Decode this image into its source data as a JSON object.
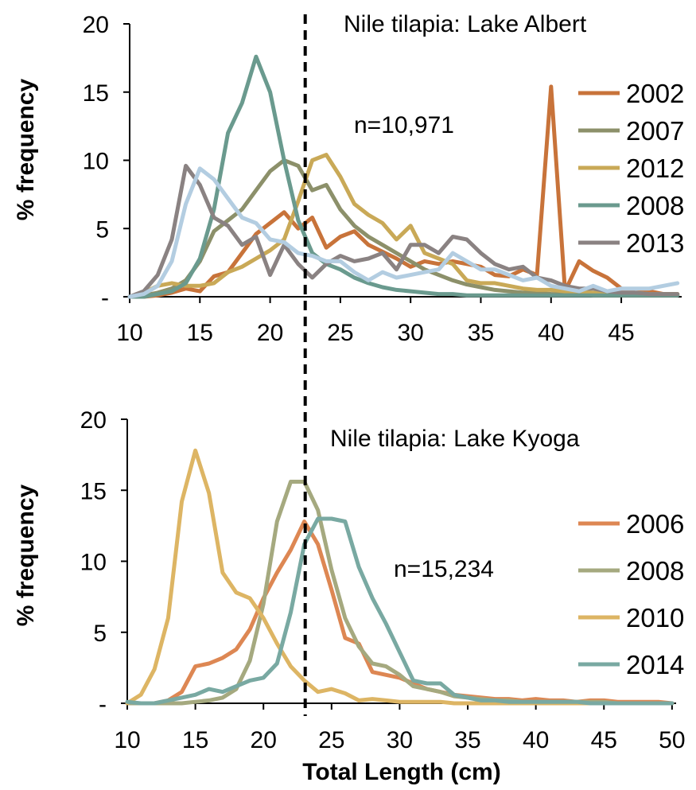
{
  "chart_data": [
    {
      "type": "line",
      "title": "Nile tilapia: Lake Albert",
      "annotation": "n=10,971",
      "ylabel": "% frequency",
      "xlabel": "",
      "xlim": [
        10,
        50
      ],
      "ylim": [
        0,
        20
      ],
      "xticks": [
        "10",
        "15",
        "20",
        "25",
        "30",
        "35",
        "40",
        "45"
      ],
      "yticks": [
        "-",
        "5",
        "10",
        "15",
        "20"
      ],
      "reference_line_x": 22.5,
      "legend_position": "right",
      "series": [
        {
          "name": "2002",
          "color": "#c8733a",
          "x": [
            10,
            11,
            12,
            13,
            14,
            15,
            16,
            17,
            18,
            19,
            20,
            21,
            22,
            23,
            24,
            25,
            26,
            27,
            28,
            29,
            30,
            31,
            32,
            33,
            34,
            35,
            36,
            37,
            38,
            39,
            40,
            41,
            42,
            43,
            44,
            45,
            46,
            47,
            48,
            49
          ],
          "y": [
            0,
            0,
            0.1,
            0.3,
            0.6,
            0.4,
            1.5,
            1.8,
            3.2,
            4.6,
            5.4,
            6.2,
            5.0,
            5.8,
            3.6,
            4.4,
            4.8,
            3.8,
            3.3,
            2.8,
            2.2,
            2.6,
            2.4,
            2.6,
            2.4,
            2.2,
            1.6,
            1.5,
            2.0,
            1.6,
            15.4,
            0.4,
            2.6,
            1.9,
            1.4,
            0.6,
            0.3,
            0.4,
            0.2,
            0.2
          ]
        },
        {
          "name": "2007",
          "color": "#8c906a",
          "x": [
            10,
            11,
            12,
            13,
            14,
            15,
            16,
            17,
            18,
            19,
            20,
            21,
            22,
            23,
            24,
            25,
            26,
            27,
            28,
            29,
            30,
            31,
            32,
            33,
            34,
            35,
            36,
            37,
            38,
            39,
            40,
            41,
            42,
            43,
            44,
            45,
            46,
            47,
            48,
            49
          ],
          "y": [
            0,
            0.1,
            0.3,
            0.6,
            1.2,
            2.6,
            4.8,
            5.6,
            6.4,
            7.8,
            9.2,
            10.0,
            9.6,
            7.8,
            8.2,
            6.4,
            5.2,
            4.4,
            3.8,
            3.2,
            2.6,
            2.0,
            1.6,
            1.2,
            0.9,
            0.7,
            0.5,
            0.4,
            0.3,
            0.3,
            0.2,
            0.2,
            0.2,
            0.1,
            0.1,
            0.1,
            0.1,
            0.1,
            0.1,
            0.1
          ]
        },
        {
          "name": "2012",
          "color": "#c9a957",
          "x": [
            10,
            11,
            12,
            13,
            14,
            15,
            16,
            17,
            18,
            19,
            20,
            21,
            22,
            23,
            24,
            25,
            26,
            27,
            28,
            29,
            30,
            31,
            32,
            33,
            34,
            35,
            36,
            37,
            38,
            39,
            40,
            41,
            42,
            43,
            44,
            45,
            46,
            47,
            48,
            49
          ],
          "y": [
            0,
            0.3,
            0.8,
            1.0,
            0.8,
            0.8,
            1.0,
            1.8,
            2.2,
            2.8,
            3.4,
            4.2,
            7.0,
            10.0,
            10.4,
            8.8,
            6.8,
            6.0,
            5.4,
            4.2,
            5.2,
            3.2,
            2.8,
            2.4,
            1.2,
            1.0,
            1.0,
            0.8,
            0.6,
            0.5,
            0.5,
            0.4,
            0.4,
            0.3,
            0.3,
            0.3,
            0.3,
            0.2,
            0.2,
            0.2
          ]
        },
        {
          "name": "2008",
          "color": "#6a9a8e",
          "x": [
            10,
            11,
            12,
            13,
            14,
            15,
            16,
            17,
            18,
            19,
            20,
            21,
            22,
            23,
            24,
            25,
            26,
            27,
            28,
            29,
            30,
            31,
            32,
            33,
            34,
            35,
            36,
            37,
            38,
            39,
            40,
            41,
            42,
            43,
            44,
            45,
            46,
            47,
            48,
            49
          ],
          "y": [
            0,
            0,
            0.2,
            0.4,
            1.0,
            2.8,
            6.4,
            12.0,
            14.2,
            17.6,
            15.0,
            10.0,
            5.6,
            3.2,
            2.4,
            2.0,
            1.4,
            1.0,
            0.7,
            0.5,
            0.4,
            0.3,
            0.2,
            0.2,
            0.1,
            0.1,
            0.1,
            0.1,
            0.1,
            0.1,
            0.1,
            0.1,
            0.1,
            0.1,
            0.1,
            0.1,
            0.1,
            0.1,
            0.1,
            0.1
          ]
        },
        {
          "name": "2013",
          "color": "#8a8282",
          "x": [
            10,
            11,
            12,
            13,
            14,
            15,
            16,
            17,
            18,
            19,
            20,
            21,
            22,
            23,
            24,
            25,
            26,
            27,
            28,
            29,
            30,
            31,
            32,
            33,
            34,
            35,
            36,
            37,
            38,
            39,
            40,
            41,
            42,
            43,
            44,
            45,
            46,
            47,
            48,
            49
          ],
          "y": [
            0,
            0.4,
            1.6,
            4.2,
            9.6,
            8.2,
            5.8,
            5.2,
            3.8,
            4.4,
            1.6,
            3.8,
            2.4,
            1.4,
            2.4,
            3.0,
            2.6,
            2.8,
            3.2,
            2.0,
            3.8,
            3.8,
            3.2,
            4.4,
            4.2,
            3.2,
            2.4,
            2.0,
            2.2,
            1.4,
            1.2,
            0.8,
            0.6,
            0.6,
            0.4,
            0.3,
            0.3,
            0.2,
            0.2,
            0.2
          ]
        },
        {
          "name": "",
          "color": "#b3cde1",
          "x": [
            10,
            11,
            12,
            13,
            14,
            15,
            16,
            17,
            18,
            19,
            20,
            21,
            22,
            23,
            24,
            25,
            26,
            27,
            28,
            29,
            30,
            31,
            32,
            33,
            34,
            35,
            36,
            37,
            38,
            39,
            40,
            41,
            42,
            43,
            44,
            45,
            46,
            47,
            48,
            49
          ],
          "y": [
            0,
            0.2,
            0.8,
            2.6,
            6.8,
            9.4,
            8.6,
            7.2,
            5.8,
            5.4,
            4.2,
            4.0,
            3.2,
            3.0,
            2.6,
            2.6,
            1.8,
            1.2,
            1.8,
            1.4,
            1.6,
            1.8,
            2.0,
            3.2,
            2.6,
            2.0,
            2.0,
            1.6,
            1.2,
            1.4,
            0.8,
            0.6,
            0.4,
            0.8,
            0.4,
            0.6,
            0.6,
            0.6,
            0.8,
            1.0
          ]
        }
      ]
    },
    {
      "type": "line",
      "title": "Nile tilapia: Lake Kyoga",
      "annotation": "n=15,234",
      "ylabel": "% frequency",
      "xlabel": "Total Length (cm)",
      "xlim": [
        10,
        50
      ],
      "ylim": [
        0,
        20
      ],
      "xticks": [
        "10",
        "15",
        "20",
        "25",
        "30",
        "35",
        "40",
        "45",
        "50"
      ],
      "yticks": [
        "-",
        "5",
        "10",
        "15",
        "20"
      ],
      "reference_line_x": 23,
      "legend_position": "right",
      "series": [
        {
          "name": "2006",
          "color": "#dd8753",
          "x": [
            10,
            11,
            12,
            13,
            14,
            15,
            16,
            17,
            18,
            19,
            20,
            21,
            22,
            23,
            24,
            25,
            26,
            27,
            28,
            29,
            30,
            31,
            32,
            33,
            34,
            35,
            36,
            37,
            38,
            39,
            40,
            41,
            42,
            43,
            44,
            45,
            46,
            47,
            48,
            49,
            50
          ],
          "y": [
            0,
            0,
            0,
            0.2,
            0.8,
            2.6,
            2.8,
            3.2,
            3.8,
            5.2,
            7.4,
            9.2,
            10.8,
            12.8,
            11.2,
            8.0,
            4.6,
            4.2,
            2.2,
            2.0,
            1.8,
            1.4,
            1.0,
            0.8,
            0.6,
            0.5,
            0.4,
            0.3,
            0.3,
            0.2,
            0.3,
            0.2,
            0.2,
            0.1,
            0.2,
            0.2,
            0.1,
            0.1,
            0.1,
            0.1,
            0
          ]
        },
        {
          "name": "2008",
          "color": "#a5a97f",
          "x": [
            10,
            11,
            12,
            13,
            14,
            15,
            16,
            17,
            18,
            19,
            20,
            21,
            22,
            23,
            24,
            25,
            26,
            27,
            28,
            29,
            30,
            31,
            32,
            33,
            34,
            35,
            36,
            37,
            38,
            39,
            40,
            41,
            42,
            43,
            44,
            45,
            46,
            47,
            48,
            49,
            50
          ],
          "y": [
            0,
            0,
            0,
            0,
            0,
            0.1,
            0.2,
            0.4,
            1.0,
            3.0,
            7.0,
            12.8,
            15.6,
            15.6,
            13.6,
            9.4,
            6.0,
            4.0,
            2.8,
            2.6,
            2.0,
            1.2,
            1.0,
            0.8,
            0.5,
            0.4,
            0.3,
            0.2,
            0.2,
            0.1,
            0.1,
            0.1,
            0.1,
            0.1,
            0.1,
            0.1,
            0,
            0,
            0,
            0,
            0
          ]
        },
        {
          "name": "2010",
          "color": "#ddb564",
          "x": [
            10,
            11,
            12,
            13,
            14,
            15,
            16,
            17,
            18,
            19,
            20,
            21,
            22,
            23,
            24,
            25,
            26,
            27,
            28,
            29,
            30,
            31,
            32,
            33,
            34,
            35,
            36,
            37,
            38,
            39,
            40,
            41,
            42,
            43,
            44,
            45,
            46,
            47,
            48,
            49,
            50
          ],
          "y": [
            0,
            0.6,
            2.4,
            6.0,
            14.2,
            17.8,
            14.8,
            9.2,
            7.8,
            7.4,
            6.0,
            4.2,
            2.6,
            1.6,
            0.8,
            1.0,
            0.7,
            0.2,
            0.3,
            0.2,
            0.1,
            0.1,
            0.1,
            0.1,
            0,
            0,
            0,
            0,
            0,
            0,
            0,
            0,
            0,
            0,
            0,
            0,
            0,
            0,
            0,
            0,
            0
          ]
        },
        {
          "name": "2014",
          "color": "#79a9a2",
          "x": [
            10,
            11,
            12,
            13,
            14,
            15,
            16,
            17,
            18,
            19,
            20,
            21,
            22,
            23,
            24,
            25,
            26,
            27,
            28,
            29,
            30,
            31,
            32,
            33,
            34,
            35,
            36,
            37,
            38,
            39,
            40,
            41,
            42,
            43,
            44,
            45,
            46,
            47,
            48,
            49,
            50
          ],
          "y": [
            0.1,
            0,
            0,
            0.2,
            0.4,
            0.6,
            1.0,
            0.8,
            1.2,
            1.6,
            1.8,
            2.8,
            6.4,
            11.2,
            13.0,
            13.0,
            12.8,
            9.6,
            7.4,
            5.6,
            3.6,
            1.6,
            1.4,
            1.4,
            0.6,
            0.4,
            0.2,
            0.2,
            0.1,
            0.1,
            0.1,
            0.1,
            0.1,
            0.1,
            0,
            0,
            0,
            0,
            0,
            0,
            0
          ]
        }
      ]
    }
  ]
}
